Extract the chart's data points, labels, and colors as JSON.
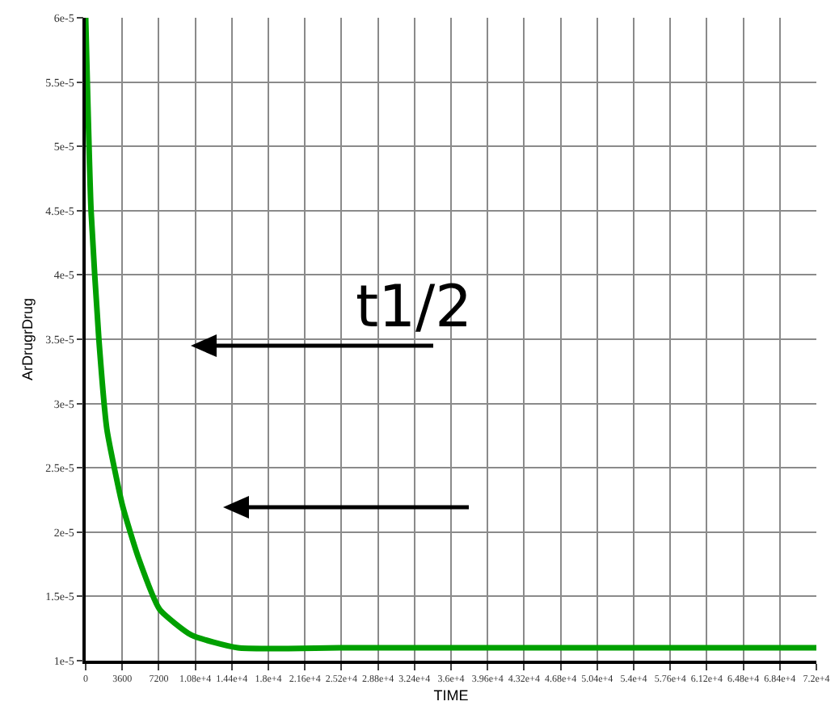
{
  "chart_data": {
    "type": "line",
    "xlabel": "TIME",
    "ylabel": "ArDrugrDrug",
    "x": [
      0,
      530,
      1300,
      2090,
      3650,
      5200,
      7280,
      10400,
      15000,
      25000,
      40000,
      55000,
      72000
    ],
    "series": [
      {
        "color": "#00a000",
        "values": [
          6e-05,
          4.5e-05,
          3.5e-05,
          2.8e-05,
          2.2e-05,
          1.8e-05,
          1.4e-05,
          1.2e-05,
          1.1e-05,
          1.1e-05,
          1.1e-05,
          1.1e-05,
          1.1e-05
        ]
      }
    ],
    "xlim": [
      0,
      72000
    ],
    "ylim": [
      1e-05,
      6e-05
    ],
    "xticks": [
      0,
      3600,
      7200,
      {
        "value": 10800,
        "label": "1.08e+4"
      },
      {
        "value": 14400,
        "label": "1.44e+4"
      },
      {
        "value": 18000,
        "label": "1.8e+4"
      },
      {
        "value": 21600,
        "label": "2.16e+4"
      },
      {
        "value": 25200,
        "label": "2.52e+4"
      },
      {
        "value": 28800,
        "label": "2.88e+4"
      },
      {
        "value": 32400,
        "label": "3.24e+4"
      },
      {
        "value": 36000,
        "label": "3.6e+4"
      },
      {
        "value": 39600,
        "label": "3.96e+4"
      },
      {
        "value": 43200,
        "label": "4.32e+4"
      },
      {
        "value": 46800,
        "label": "4.68e+4"
      },
      {
        "value": 50400,
        "label": "5.04e+4"
      },
      {
        "value": 54000,
        "label": "5.4e+4"
      },
      {
        "value": 57600,
        "label": "5.76e+4"
      },
      {
        "value": 61200,
        "label": "6.12e+4"
      },
      {
        "value": 64800,
        "label": "6.48e+4"
      },
      {
        "value": 68400,
        "label": "6.84e+4"
      },
      {
        "value": 72000,
        "label": "7.2e+4"
      }
    ],
    "yticks": [
      {
        "value": 1e-05,
        "label": "1e-5"
      },
      {
        "value": 1.5e-05,
        "label": "1.5e-5"
      },
      {
        "value": 2e-05,
        "label": "2e-5"
      },
      {
        "value": 2.5e-05,
        "label": "2.5e-5"
      },
      {
        "value": 3e-05,
        "label": "3e-5"
      },
      {
        "value": 3.5e-05,
        "label": "3.5e-5"
      },
      {
        "value": 4e-05,
        "label": "4e-5"
      },
      {
        "value": 4.5e-05,
        "label": "4.5e-5"
      },
      {
        "value": 5e-05,
        "label": "5e-5"
      },
      {
        "value": 5.5e-05,
        "label": "5.5e-5"
      },
      {
        "value": 6e-05,
        "label": "6e-5"
      }
    ],
    "grid": true,
    "marker": "none",
    "line_style": "solid",
    "annotations": [
      "t1/2"
    ]
  }
}
